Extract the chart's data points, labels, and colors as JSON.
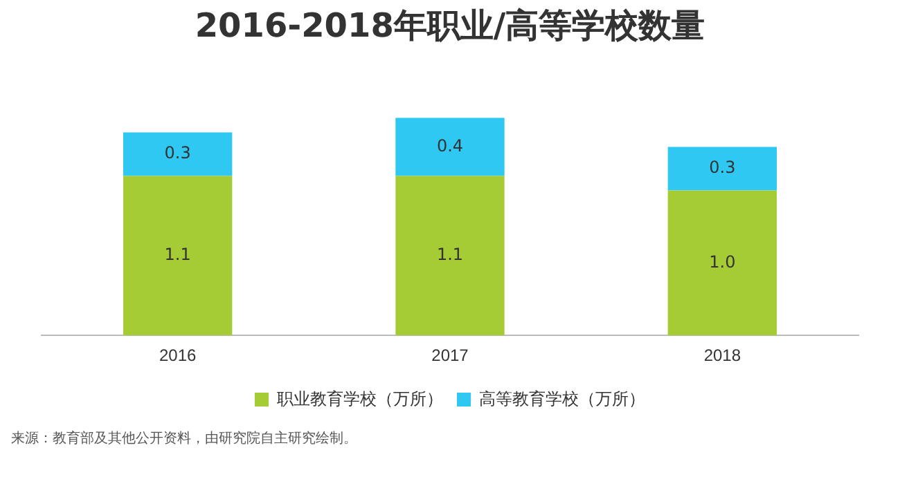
{
  "chart_data": {
    "type": "bar",
    "title": "2016-2018年职业/高等学校数量",
    "categories": [
      "2016",
      "2017",
      "2018"
    ],
    "stacked": true,
    "legend": "bottom",
    "grid": false,
    "series": [
      {
        "name": "职业教育学校（万所）",
        "color": "#a5cc34",
        "values": [
          1.1,
          1.1,
          1.0
        ],
        "value_labels": [
          "1.1",
          "1.1",
          "1.0"
        ]
      },
      {
        "name": "高等教育学校（万所）",
        "color": "#2ec8f2",
        "values": [
          0.3,
          0.4,
          0.3
        ],
        "value_labels": [
          "0.3",
          "0.4",
          "0.3"
        ]
      }
    ],
    "annotations": [
      "来源：教育部及其他公开资料，由研究院自主研究绘制。"
    ]
  }
}
